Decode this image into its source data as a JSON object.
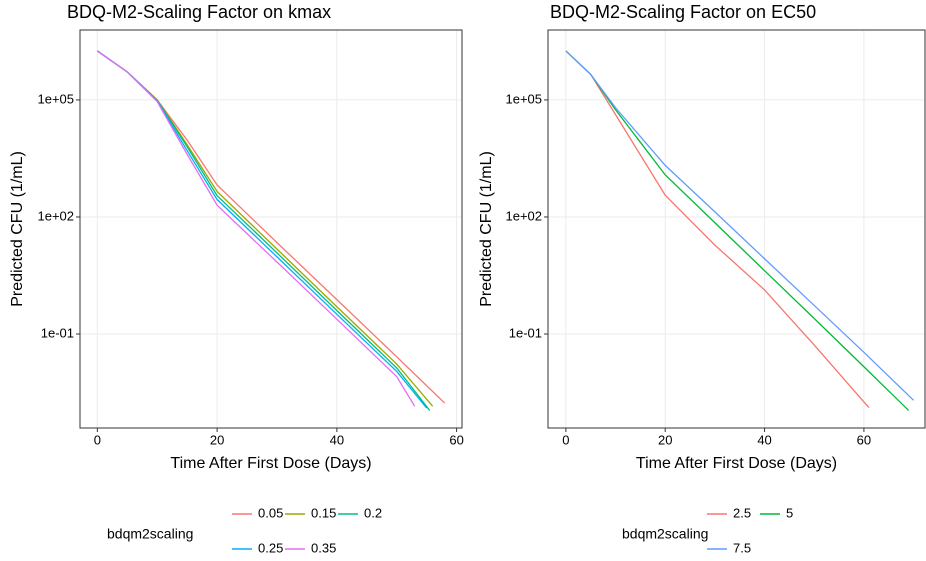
{
  "chart_data": [
    {
      "type": "line",
      "title": "BDQ-M2-Scaling Factor on kmax",
      "xlabel": "Time After First Dose (Days)",
      "ylabel": "Predicted CFU (1/mL)",
      "log_y": true,
      "grid": true,
      "legend_title": "bdqm2scaling",
      "legend_position": "bottom",
      "xlim": [
        -2.9,
        60.9
      ],
      "xticks": [
        0,
        20,
        40,
        60
      ],
      "ylim": [
        0.00039,
        6200000
      ],
      "yticks": [
        {
          "value": 0.1,
          "label": "1e-01"
        },
        {
          "value": 100,
          "label": "1e+02"
        },
        {
          "value": 100000,
          "label": "1e+05"
        }
      ],
      "series": [
        {
          "name": "0.05",
          "color": "#F8766D",
          "x": [
            0,
            5,
            10,
            15,
            20,
            30,
            40,
            50,
            58
          ],
          "values": [
            1800000,
            520000,
            100000,
            9300,
            660,
            22,
            0.76,
            0.026,
            0.0017
          ]
        },
        {
          "name": "0.15",
          "color": "#A3A500",
          "x": [
            0,
            5,
            10,
            15,
            20,
            30,
            40,
            50,
            56
          ],
          "values": [
            1800000,
            520000,
            100000,
            7100,
            450,
            15,
            0.5,
            0.017,
            0.0014
          ]
        },
        {
          "name": "0.2",
          "color": "#00BF7D",
          "x": [
            0,
            5,
            10,
            15,
            20,
            30,
            40,
            50,
            55.5
          ],
          "values": [
            1800000,
            520000,
            98000,
            6300,
            350,
            12,
            0.4,
            0.0135,
            0.0011
          ]
        },
        {
          "name": "0.25",
          "color": "#00B0F6",
          "x": [
            0,
            5,
            10,
            15,
            20,
            30,
            40,
            50,
            55
          ],
          "values": [
            1800000,
            520000,
            95000,
            5000,
            280,
            9.5,
            0.32,
            0.011,
            0.00126
          ]
        },
        {
          "name": "0.35",
          "color": "#E76BF3",
          "x": [
            0,
            5,
            10,
            15,
            20,
            30,
            40,
            50,
            53
          ],
          "values": [
            1800000,
            520000,
            90000,
            4000,
            200,
            7,
            0.24,
            0.0081,
            0.0014
          ]
        }
      ]
    },
    {
      "type": "line",
      "title": "BDQ-M2-Scaling Factor on EC50",
      "xlabel": "Time After First Dose (Days)",
      "ylabel": "Predicted CFU (1/mL)",
      "log_y": true,
      "grid": true,
      "legend_title": "bdqm2scaling",
      "legend_position": "bottom",
      "xlim": [
        -3.6,
        72.3
      ],
      "xticks": [
        0,
        20,
        40,
        60
      ],
      "ylim": [
        0.00039,
        6200000
      ],
      "yticks": [
        {
          "value": 0.1,
          "label": "1e-01"
        },
        {
          "value": 100,
          "label": "1e+02"
        },
        {
          "value": 100000,
          "label": "1e+05"
        }
      ],
      "series": [
        {
          "name": "2.5",
          "color": "#F8766D",
          "x": [
            0,
            5,
            10,
            20,
            30,
            40,
            50,
            61
          ],
          "values": [
            1800000,
            450000,
            42000,
            360,
            19,
            1.35,
            0.052,
            0.0013
          ]
        },
        {
          "name": "5",
          "color": "#00BA38",
          "x": [
            0,
            5,
            10,
            20,
            30,
            40,
            50,
            60,
            69
          ],
          "values": [
            1800000,
            450000,
            56000,
            1200,
            71,
            4.2,
            0.25,
            0.0145,
            0.0011
          ]
        },
        {
          "name": "7.5",
          "color": "#619CFF",
          "x": [
            0,
            5,
            10,
            20,
            30,
            40,
            50,
            60,
            70
          ],
          "values": [
            1800000,
            450000,
            63000,
            2100,
            135,
            8.5,
            0.54,
            0.034,
            0.002
          ]
        }
      ]
    }
  ]
}
